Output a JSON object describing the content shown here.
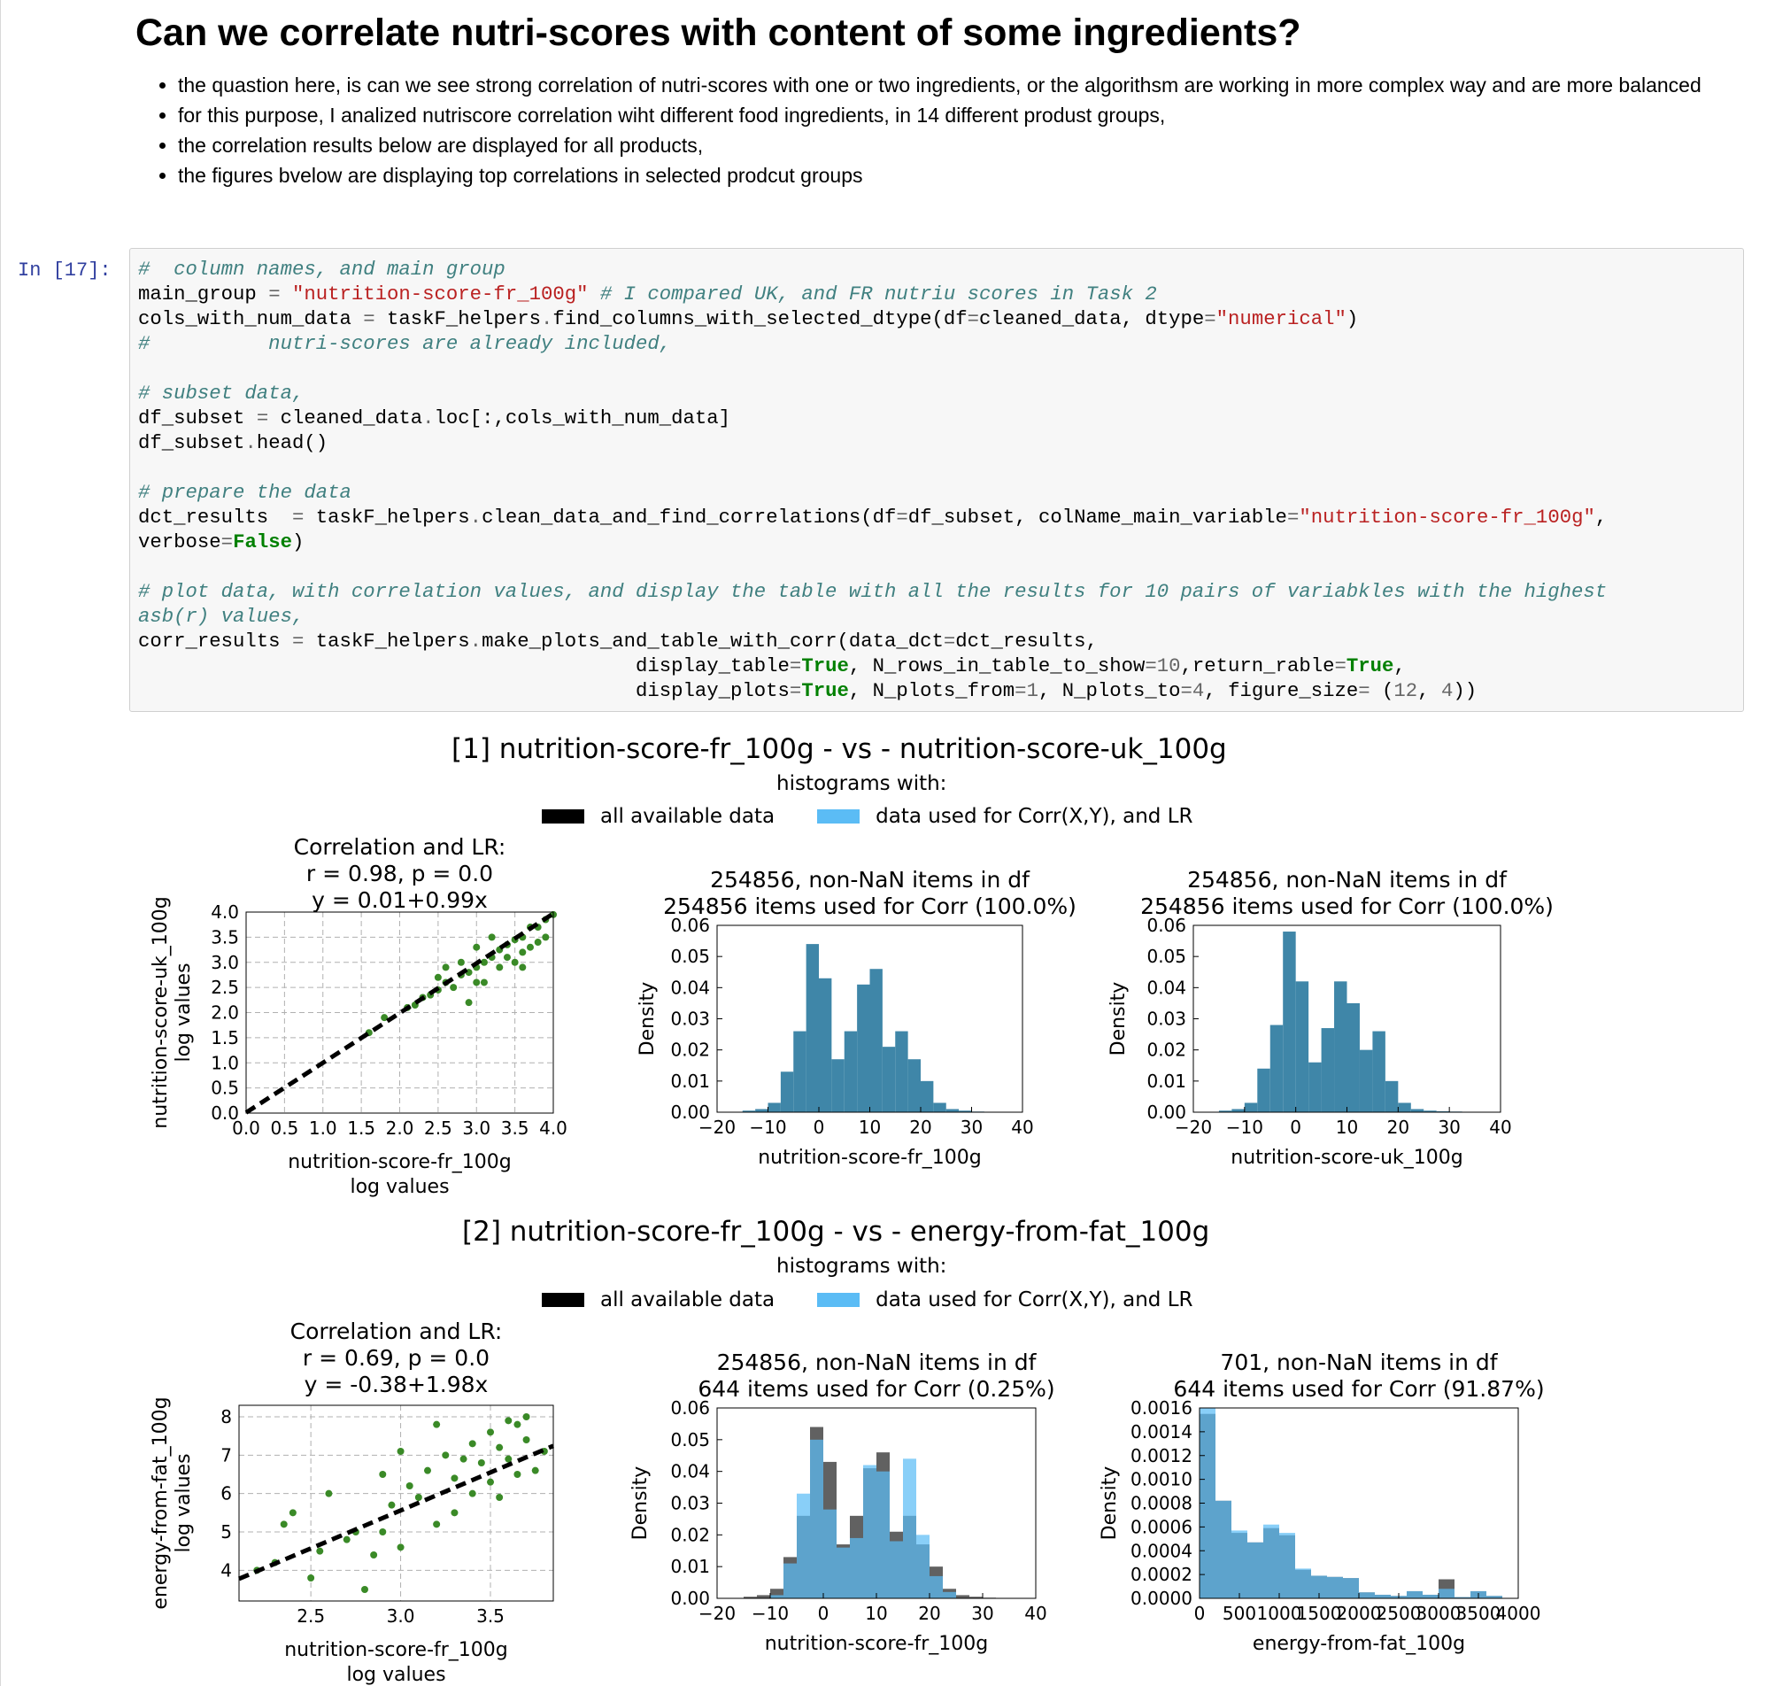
{
  "markdown": {
    "heading": "Can we correlate nutri-scores with content of some ingredients?",
    "bullets": [
      "the quastion here, is can we see strong correlation of nutri-scores with one or two ingredients, or the algorithsm are working in more complex way and are more balanced",
      "for this purpose, I analized nutriscore correlation wiht different food ingredients, in 14 different produst groups,",
      "the correlation results below are displayed for all products,",
      "the figures bvelow are displaying top correlations in selected prodcut groups"
    ]
  },
  "code_cell": {
    "prompt": "In [17]:"
  },
  "figures": [
    {
      "title": "[1] nutrition-score-fr_100g - vs - nutrition-score-uk_100g",
      "subtitle": "histograms with:",
      "legend": [
        "all available data",
        "data used for Corr(X,Y), and LR"
      ],
      "scatter_title": [
        "Correlation and LR:",
        "r = 0.98, p = 0.0",
        "y = 0.01+0.99x"
      ],
      "scatter_xlabel": [
        "nutrition-score-fr_100g",
        "log values"
      ],
      "scatter_ylabel": [
        "nutrition-score-uk_100g",
        "log values"
      ],
      "hist1_title": [
        "254856, non-NaN items in df",
        "254856 items used for Corr (100.0%)"
      ],
      "hist1_xlabel": "nutrition-score-fr_100g",
      "hist2_title": [
        "254856, non-NaN items in df",
        "254856 items used for Corr (100.0%)"
      ],
      "hist2_xlabel": "nutrition-score-uk_100g",
      "density_label": "Density"
    },
    {
      "title": "[2] nutrition-score-fr_100g - vs - energy-from-fat_100g",
      "subtitle": "histograms with:",
      "legend": [
        "all available data",
        "data used for Corr(X,Y), and LR"
      ],
      "scatter_title": [
        "Correlation and LR:",
        "r = 0.69, p = 0.0",
        "y = -0.38+1.98x"
      ],
      "scatter_xlabel": [
        "nutrition-score-fr_100g",
        "log values"
      ],
      "scatter_ylabel": [
        "energy-from-fat_100g",
        "log values"
      ],
      "hist1_title": [
        "254856, non-NaN items in df",
        "644 items used for Corr (0.25%)"
      ],
      "hist1_xlabel": "nutrition-score-fr_100g",
      "hist2_title": [
        "701, non-NaN items in df",
        "644 items used for Corr (91.87%)"
      ],
      "hist2_xlabel": "energy-from-fat_100g",
      "density_label": "Density"
    }
  ],
  "colors": {
    "all_data": "#000000",
    "corr_data": "#5bbcf5",
    "overlap": "#3f86a8",
    "scatter": "#3a8a27",
    "prompt": "#303F9F"
  },
  "chart_data": [
    {
      "type": "scatter",
      "title": "Correlation and LR: r = 0.98, p = 0.0 y = 0.01+0.99x",
      "xlabel": "nutrition-score-fr_100g log values",
      "ylabel": "nutrition-score-uk_100g log values",
      "xlim": [
        0,
        4
      ],
      "ylim": [
        0,
        4
      ],
      "xticks": [
        "0.0",
        "0.5",
        "1.0",
        "1.5",
        "2.0",
        "2.5",
        "3.0",
        "3.5",
        "4.0"
      ],
      "yticks": [
        "0.0",
        "0.5",
        "1.0",
        "1.5",
        "2.0",
        "2.5",
        "3.0",
        "3.5",
        "4.0"
      ],
      "grid": true,
      "regression": {
        "intercept": 0.01,
        "slope": 0.99
      },
      "points": [
        [
          2.1,
          2.1
        ],
        [
          2.2,
          2.15
        ],
        [
          2.3,
          2.3
        ],
        [
          2.4,
          2.35
        ],
        [
          2.5,
          2.45
        ],
        [
          2.6,
          2.6
        ],
        [
          2.7,
          2.5
        ],
        [
          2.8,
          2.75
        ],
        [
          2.9,
          2.8
        ],
        [
          3.0,
          2.9
        ],
        [
          3.1,
          3.0
        ],
        [
          3.2,
          3.1
        ],
        [
          3.3,
          3.25
        ],
        [
          3.4,
          3.35
        ],
        [
          3.5,
          3.45
        ],
        [
          3.6,
          3.5
        ],
        [
          3.7,
          3.7
        ],
        [
          3.8,
          3.7
        ],
        [
          3.9,
          3.85
        ],
        [
          4.0,
          3.95
        ],
        [
          3.0,
          3.3
        ],
        [
          3.2,
          3.5
        ],
        [
          3.4,
          3.1
        ],
        [
          3.6,
          3.2
        ],
        [
          3.8,
          3.4
        ],
        [
          3.5,
          3.0
        ],
        [
          3.3,
          2.9
        ],
        [
          3.7,
          3.3
        ],
        [
          2.8,
          3.0
        ],
        [
          2.6,
          2.9
        ],
        [
          3.1,
          2.6
        ],
        [
          3.9,
          3.5
        ],
        [
          3.6,
          2.9
        ],
        [
          3.0,
          2.6
        ],
        [
          2.5,
          2.7
        ],
        [
          2.9,
          2.2
        ],
        [
          1.8,
          1.9
        ],
        [
          1.6,
          1.6
        ]
      ]
    },
    {
      "type": "bar",
      "title": "254856, non-NaN items in df 254856 items used for Corr (100.0%)",
      "xlabel": "nutrition-score-fr_100g",
      "ylabel": "Density",
      "xlim": [
        -20,
        40
      ],
      "ylim": [
        0,
        0.06
      ],
      "xticks": [
        "−20",
        "−10",
        "0",
        "10",
        "20",
        "30",
        "40"
      ],
      "yticks": [
        "0.00",
        "0.01",
        "0.02",
        "0.03",
        "0.04",
        "0.05",
        "0.06"
      ],
      "bin_edges": [
        -15,
        -12.5,
        -10,
        -7.5,
        -5,
        -2.5,
        0,
        2.5,
        5,
        7.5,
        10,
        12.5,
        15,
        17.5,
        20,
        22.5,
        25,
        27.5,
        30,
        32.5,
        35
      ],
      "series": [
        {
          "name": "data used for Corr(X,Y), and LR",
          "values": [
            0.0005,
            0.001,
            0.003,
            0.013,
            0.026,
            0.054,
            0.043,
            0.017,
            0.026,
            0.041,
            0.046,
            0.021,
            0.026,
            0.017,
            0.01,
            0.003,
            0.001,
            0.0005,
            0.0002,
            0.0001
          ]
        }
      ]
    },
    {
      "type": "bar",
      "title": "254856, non-NaN items in df 254856 items used for Corr (100.0%)",
      "xlabel": "nutrition-score-uk_100g",
      "ylabel": "Density",
      "xlim": [
        -20,
        40
      ],
      "ylim": [
        0,
        0.06
      ],
      "xticks": [
        "−20",
        "−10",
        "0",
        "10",
        "20",
        "30",
        "40"
      ],
      "yticks": [
        "0.00",
        "0.01",
        "0.02",
        "0.03",
        "0.04",
        "0.05",
        "0.06"
      ],
      "bin_edges": [
        -15,
        -12.5,
        -10,
        -7.5,
        -5,
        -2.5,
        0,
        2.5,
        5,
        7.5,
        10,
        12.5,
        15,
        17.5,
        20,
        22.5,
        25,
        27.5,
        30,
        32.5,
        35
      ],
      "series": [
        {
          "name": "data used for Corr(X,Y), and LR",
          "values": [
            0.0005,
            0.001,
            0.003,
            0.014,
            0.028,
            0.058,
            0.042,
            0.016,
            0.027,
            0.042,
            0.035,
            0.02,
            0.026,
            0.01,
            0.003,
            0.001,
            0.0005,
            0.0003,
            0.0002,
            0.0001
          ]
        }
      ]
    },
    {
      "type": "scatter",
      "title": "Correlation and LR: r = 0.69, p = 0.0 y = -0.38+1.98x",
      "xlabel": "nutrition-score-fr_100g log values",
      "ylabel": "energy-from-fat_100g log values",
      "xlim": [
        2.1,
        3.85
      ],
      "ylim": [
        3.2,
        8.3
      ],
      "xticks": [
        "2.5",
        "3.0",
        "3.5"
      ],
      "yticks": [
        "4",
        "5",
        "6",
        "7",
        "8"
      ],
      "grid": true,
      "regression": {
        "intercept": -0.38,
        "slope": 1.98
      },
      "points": [
        [
          2.2,
          4.0
        ],
        [
          2.3,
          4.2
        ],
        [
          2.35,
          5.2
        ],
        [
          2.4,
          5.5
        ],
        [
          2.5,
          3.8
        ],
        [
          2.55,
          4.5
        ],
        [
          2.6,
          6.0
        ],
        [
          2.7,
          4.8
        ],
        [
          2.75,
          5.0
        ],
        [
          2.8,
          3.5
        ],
        [
          2.85,
          4.4
        ],
        [
          2.9,
          6.5
        ],
        [
          2.95,
          5.7
        ],
        [
          3.0,
          4.6
        ],
        [
          3.05,
          6.2
        ],
        [
          3.1,
          5.9
        ],
        [
          3.15,
          6.6
        ],
        [
          3.2,
          5.2
        ],
        [
          3.25,
          7.0
        ],
        [
          3.3,
          6.4
        ],
        [
          3.35,
          6.9
        ],
        [
          3.4,
          7.3
        ],
        [
          3.45,
          6.8
        ],
        [
          3.5,
          7.6
        ],
        [
          3.55,
          7.2
        ],
        [
          3.6,
          6.9
        ],
        [
          3.65,
          7.8
        ],
        [
          3.7,
          7.4
        ],
        [
          3.75,
          6.6
        ],
        [
          3.8,
          7.1
        ],
        [
          3.3,
          5.5
        ],
        [
          3.4,
          6.0
        ],
        [
          3.5,
          6.3
        ],
        [
          3.6,
          7.9
        ],
        [
          3.7,
          8.0
        ],
        [
          3.2,
          7.8
        ],
        [
          3.0,
          7.1
        ],
        [
          2.9,
          5.0
        ],
        [
          3.55,
          5.9
        ],
        [
          3.65,
          6.5
        ]
      ]
    },
    {
      "type": "bar",
      "title": "254856, non-NaN items in df 644 items used for Corr (0.25%)",
      "xlabel": "nutrition-score-fr_100g",
      "ylabel": "Density",
      "xlim": [
        -20,
        40
      ],
      "ylim": [
        0,
        0.06
      ],
      "xticks": [
        "−20",
        "−10",
        "0",
        "10",
        "20",
        "30",
        "40"
      ],
      "yticks": [
        "0.00",
        "0.01",
        "0.02",
        "0.03",
        "0.04",
        "0.05",
        "0.06"
      ],
      "bin_edges": [
        -15,
        -12.5,
        -10,
        -7.5,
        -5,
        -2.5,
        0,
        2.5,
        5,
        7.5,
        10,
        12.5,
        15,
        17.5,
        20,
        22.5,
        25,
        27.5,
        30,
        32.5,
        35
      ],
      "series": [
        {
          "name": "all available data",
          "values": [
            0.0005,
            0.001,
            0.003,
            0.013,
            0.026,
            0.054,
            0.043,
            0.017,
            0.026,
            0.041,
            0.046,
            0.021,
            0.026,
            0.017,
            0.01,
            0.003,
            0.001,
            0.0005,
            0.0002,
            0.0001
          ]
        },
        {
          "name": "data used for Corr(X,Y), and LR",
          "values": [
            0,
            0,
            0.001,
            0.011,
            0.033,
            0.05,
            0.028,
            0.016,
            0.019,
            0.042,
            0.04,
            0.018,
            0.044,
            0.02,
            0.007,
            0.002,
            0,
            0,
            0,
            0
          ]
        }
      ]
    },
    {
      "type": "bar",
      "title": "701, non-NaN items in df 644 items used for Corr (91.87%)",
      "xlabel": "energy-from-fat_100g",
      "ylabel": "Density",
      "xlim": [
        0,
        4000
      ],
      "ylim": [
        0,
        0.0016
      ],
      "xticks": [
        "0",
        "500",
        "1000",
        "1500",
        "2000",
        "2500",
        "3000",
        "3500",
        "4000"
      ],
      "yticks": [
        "0.0000",
        "0.0002",
        "0.0004",
        "0.0006",
        "0.0008",
        "0.0010",
        "0.0012",
        "0.0014",
        "0.0016"
      ],
      "bin_edges": [
        0,
        200,
        400,
        600,
        800,
        1000,
        1200,
        1400,
        1600,
        1800,
        2000,
        2200,
        2400,
        2600,
        2800,
        3000,
        3200,
        3400,
        3600,
        3800
      ],
      "series": [
        {
          "name": "all available data",
          "values": [
            0.00155,
            0.00082,
            0.00055,
            0.00047,
            0.00059,
            0.00053,
            0.00024,
            0.00019,
            0.00018,
            0.00017,
            5e-05,
            3e-05,
            2e-05,
            6e-05,
            3e-05,
            0.00016,
            1e-05,
            6e-05,
            2e-05
          ]
        },
        {
          "name": "data used for Corr(X,Y), and LR",
          "values": [
            0.0016,
            0.00082,
            0.00057,
            0.00047,
            0.00062,
            0.00055,
            0.00025,
            0.00019,
            0.00018,
            0.00017,
            5e-05,
            3e-05,
            2e-05,
            6e-05,
            3e-05,
            8e-05,
            1e-05,
            6e-05,
            2e-05
          ]
        }
      ]
    }
  ]
}
